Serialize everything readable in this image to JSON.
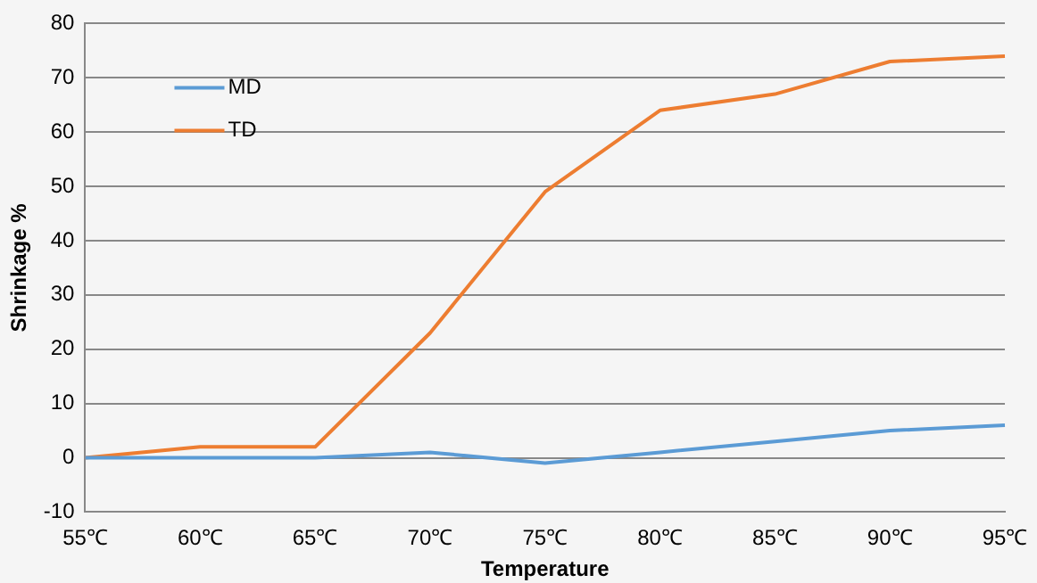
{
  "chart_data": {
    "type": "line",
    "xlabel": "Temperature",
    "ylabel": "Shrinkage %",
    "categories": [
      "55℃",
      "60℃",
      "65℃",
      "70℃",
      "75℃",
      "80℃",
      "85℃",
      "90℃",
      "95℃"
    ],
    "series": [
      {
        "name": "MD",
        "color": "#5b9bd5",
        "values": [
          0,
          0,
          0,
          1,
          -1,
          1,
          3,
          5,
          6
        ]
      },
      {
        "name": "TD",
        "color": "#ed7d31",
        "values": [
          0,
          2,
          2,
          23,
          49,
          64,
          67,
          73,
          74
        ]
      }
    ],
    "ylim": [
      -10,
      80
    ],
    "yticks": [
      -10,
      0,
      10,
      20,
      30,
      40,
      50,
      60,
      70,
      80
    ],
    "grid": "y",
    "legend": "top left",
    "marker": "none",
    "line_style": "solid"
  }
}
